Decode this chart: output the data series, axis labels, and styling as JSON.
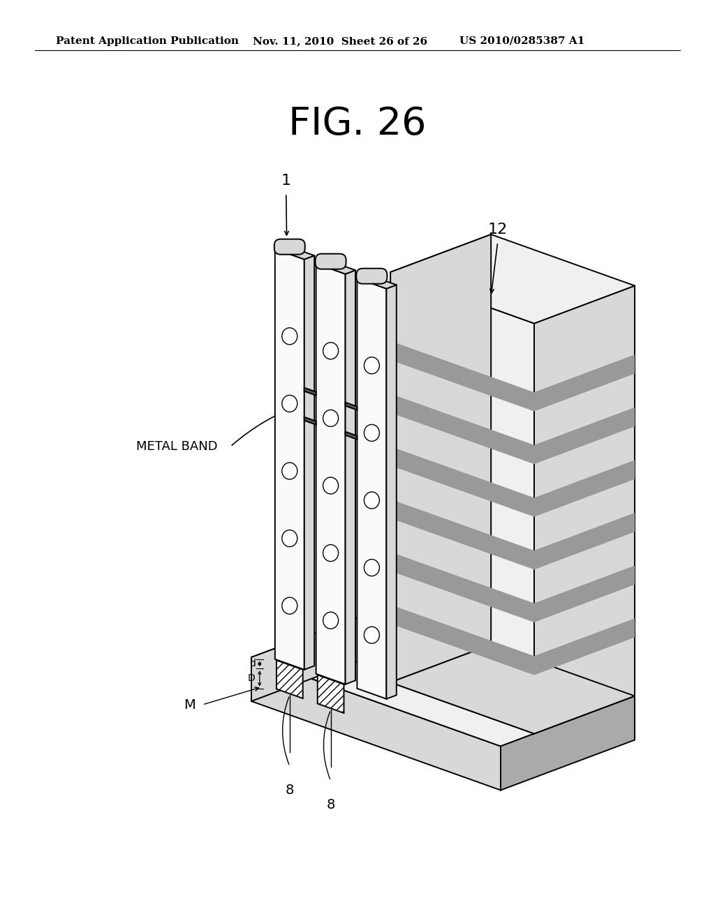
{
  "title": "FIG. 26",
  "header_left": "Patent Application Publication",
  "header_mid": "Nov. 11, 2010  Sheet 26 of 26",
  "header_right": "US 2010/0285387 A1",
  "bg_color": "#ffffff",
  "label_1": "1",
  "label_12": "12",
  "label_metal_band": "METAL BAND",
  "label_d": "d",
  "label_D": "D",
  "label_M": "M",
  "label_8": "8",
  "fig_title_fontsize": 40,
  "header_fontsize": 11,
  "note_color": "#000000",
  "gray_light": "#f0f0f0",
  "gray_mid": "#d8d8d8",
  "gray_dark": "#aaaaaa",
  "stripe_color": "#999999",
  "lw_main": 1.4,
  "lw_thin": 1.0
}
